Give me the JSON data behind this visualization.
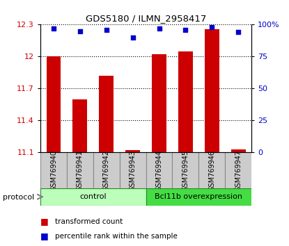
{
  "title": "GDS5180 / ILMN_2958417",
  "samples": [
    "GSM769940",
    "GSM769941",
    "GSM769942",
    "GSM769943",
    "GSM769944",
    "GSM769945",
    "GSM769946",
    "GSM769947"
  ],
  "bar_values": [
    12.0,
    11.6,
    11.82,
    11.12,
    12.02,
    12.05,
    12.26,
    11.13
  ],
  "dot_values": [
    97,
    95,
    96,
    90,
    97,
    96,
    98,
    94
  ],
  "ylim_left": [
    11.1,
    12.3
  ],
  "ylim_right": [
    0,
    100
  ],
  "yticks_left": [
    11.1,
    11.4,
    11.7,
    12.0,
    12.3
  ],
  "ytick_labels_left": [
    "11.1",
    "11.4",
    "11.7",
    "12",
    "12.3"
  ],
  "yticks_right": [
    0,
    25,
    50,
    75,
    100
  ],
  "ytick_labels_right": [
    "0",
    "25",
    "50",
    "75",
    "100%"
  ],
  "bar_color": "#cc0000",
  "dot_color": "#0000cc",
  "groups": [
    {
      "label": "control",
      "start": 0,
      "end": 4,
      "color": "#bbffbb"
    },
    {
      "label": "Bcl11b overexpression",
      "start": 4,
      "end": 8,
      "color": "#44dd44"
    }
  ],
  "protocol_label": "protocol",
  "legend_bar_label": "transformed count",
  "legend_dot_label": "percentile rank within the sample",
  "sample_box_color": "#cccccc",
  "sample_box_edge": "#888888"
}
